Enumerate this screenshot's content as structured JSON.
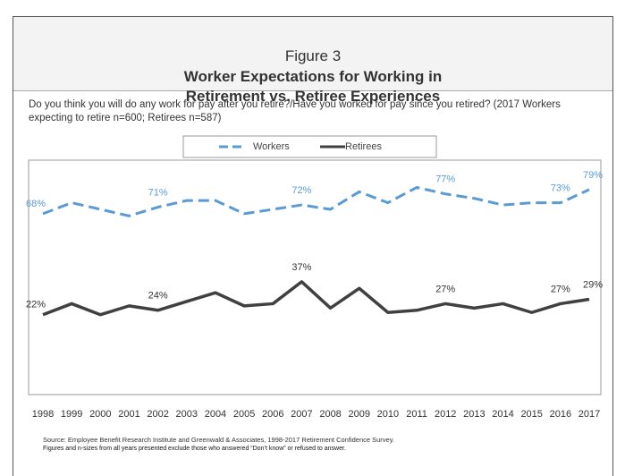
{
  "chart_data": {
    "type": "line",
    "figure_label": "Figure 3",
    "title": "Worker Expectations for Working in Retirement vs. Retiree Experiences",
    "subtitle": "Do you think you will do any work for pay after you retire?/Have you worked for pay since you retired? (2017 Workers expecting to retire n=600; Retirees n=587)",
    "categories": [
      "1998",
      "1999",
      "2000",
      "2001",
      "2002",
      "2003",
      "2004",
      "2005",
      "2006",
      "2007",
      "2008",
      "2009",
      "2010",
      "2011",
      "2012",
      "2013",
      "2014",
      "2015",
      "2016",
      "2017"
    ],
    "series": [
      {
        "name": "Workers",
        "color": "#5b9bd5",
        "dashed": true,
        "values": [
          68,
          73,
          70,
          67,
          71,
          74,
          74,
          68,
          70,
          72,
          70,
          78,
          73,
          80,
          77,
          75,
          72,
          73,
          73,
          79
        ],
        "value_labels": [
          "68%",
          null,
          null,
          null,
          "71%",
          null,
          null,
          null,
          null,
          "72%",
          null,
          null,
          null,
          null,
          "77%",
          null,
          null,
          null,
          "73%",
          "79%"
        ]
      },
      {
        "name": "Retirees",
        "color": "#404040",
        "dashed": false,
        "values": [
          22,
          27,
          22,
          26,
          24,
          28,
          32,
          26,
          27,
          37,
          25,
          34,
          23,
          24,
          27,
          25,
          27,
          23,
          27,
          29
        ],
        "value_labels": [
          "22%",
          null,
          null,
          null,
          "24%",
          null,
          null,
          null,
          null,
          "37%",
          null,
          null,
          null,
          null,
          "27%",
          null,
          null,
          null,
          "27%",
          "29%"
        ]
      }
    ],
    "ylim": [
      -14,
      92
    ],
    "legend": "top",
    "source": "Source:  Employee Benefit Research Institute and Greenwald & Associates, 1998-2017 Retirement Confidence Survey.",
    "note": "Figures and n-sizes from all years presented exclude those who answered “Don’t know” or refused to answer."
  }
}
